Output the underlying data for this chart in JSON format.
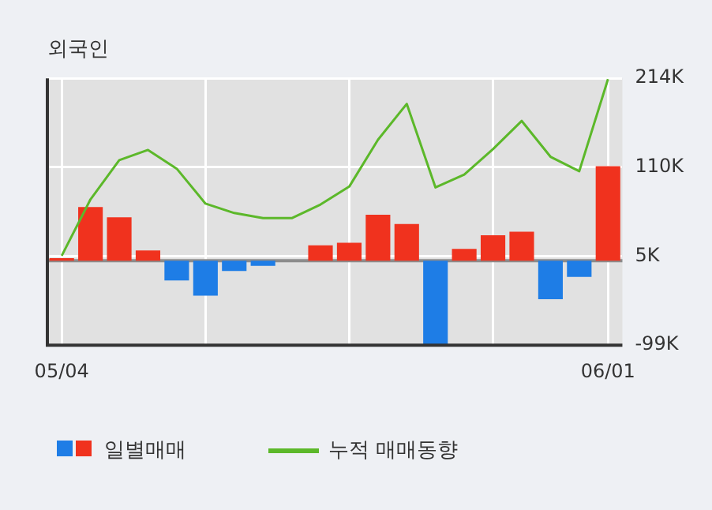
{
  "chart_data": {
    "type": "bar",
    "title": "외국인",
    "categories": [
      "05/04",
      null,
      null,
      null,
      null,
      null,
      null,
      null,
      null,
      null,
      null,
      null,
      null,
      null,
      null,
      null,
      null,
      null,
      null,
      "06/01"
    ],
    "series": [
      {
        "name": "일별매매",
        "colors": [
          "#f0321e",
          "#f0321e",
          "#f0321e",
          "#f0321e",
          "#1e7de6",
          "#1e7de6",
          "#1e7de6",
          "#1e7de6",
          "#f0321e",
          "#f0321e",
          "#f0321e",
          "#f0321e",
          "#f0321e",
          "#1e7de6",
          "#f0321e",
          "#f0321e",
          "#f0321e",
          "#1e7de6",
          "#1e7de6",
          "#f0321e"
        ],
        "values": [
          3,
          63,
          51,
          12,
          -23,
          -41,
          -12,
          -6,
          0,
          18,
          21,
          54,
          43,
          -98,
          14,
          30,
          34,
          -45,
          -19,
          111
        ]
      },
      {
        "name": "누적 매매동향",
        "type": "line",
        "color": "#5cb82a",
        "values": [
          6,
          72,
          118,
          130,
          108,
          67,
          56,
          50,
          50,
          66,
          87,
          142,
          184,
          86,
          101,
          131,
          164,
          122,
          105,
          213
        ]
      }
    ],
    "ylim": [
      -99,
      214
    ],
    "yticks": [
      {
        "value": 214,
        "label": "214K"
      },
      {
        "value": 110,
        "label": "110K"
      },
      {
        "value": 5,
        "label": "5K"
      },
      {
        "value": -99,
        "label": "-99K"
      }
    ],
    "ref_lines": [
      {
        "axis": "y",
        "value": 0,
        "color": "#8c8c8c"
      }
    ],
    "grid": true,
    "legend": "bottom",
    "marker": "none"
  }
}
